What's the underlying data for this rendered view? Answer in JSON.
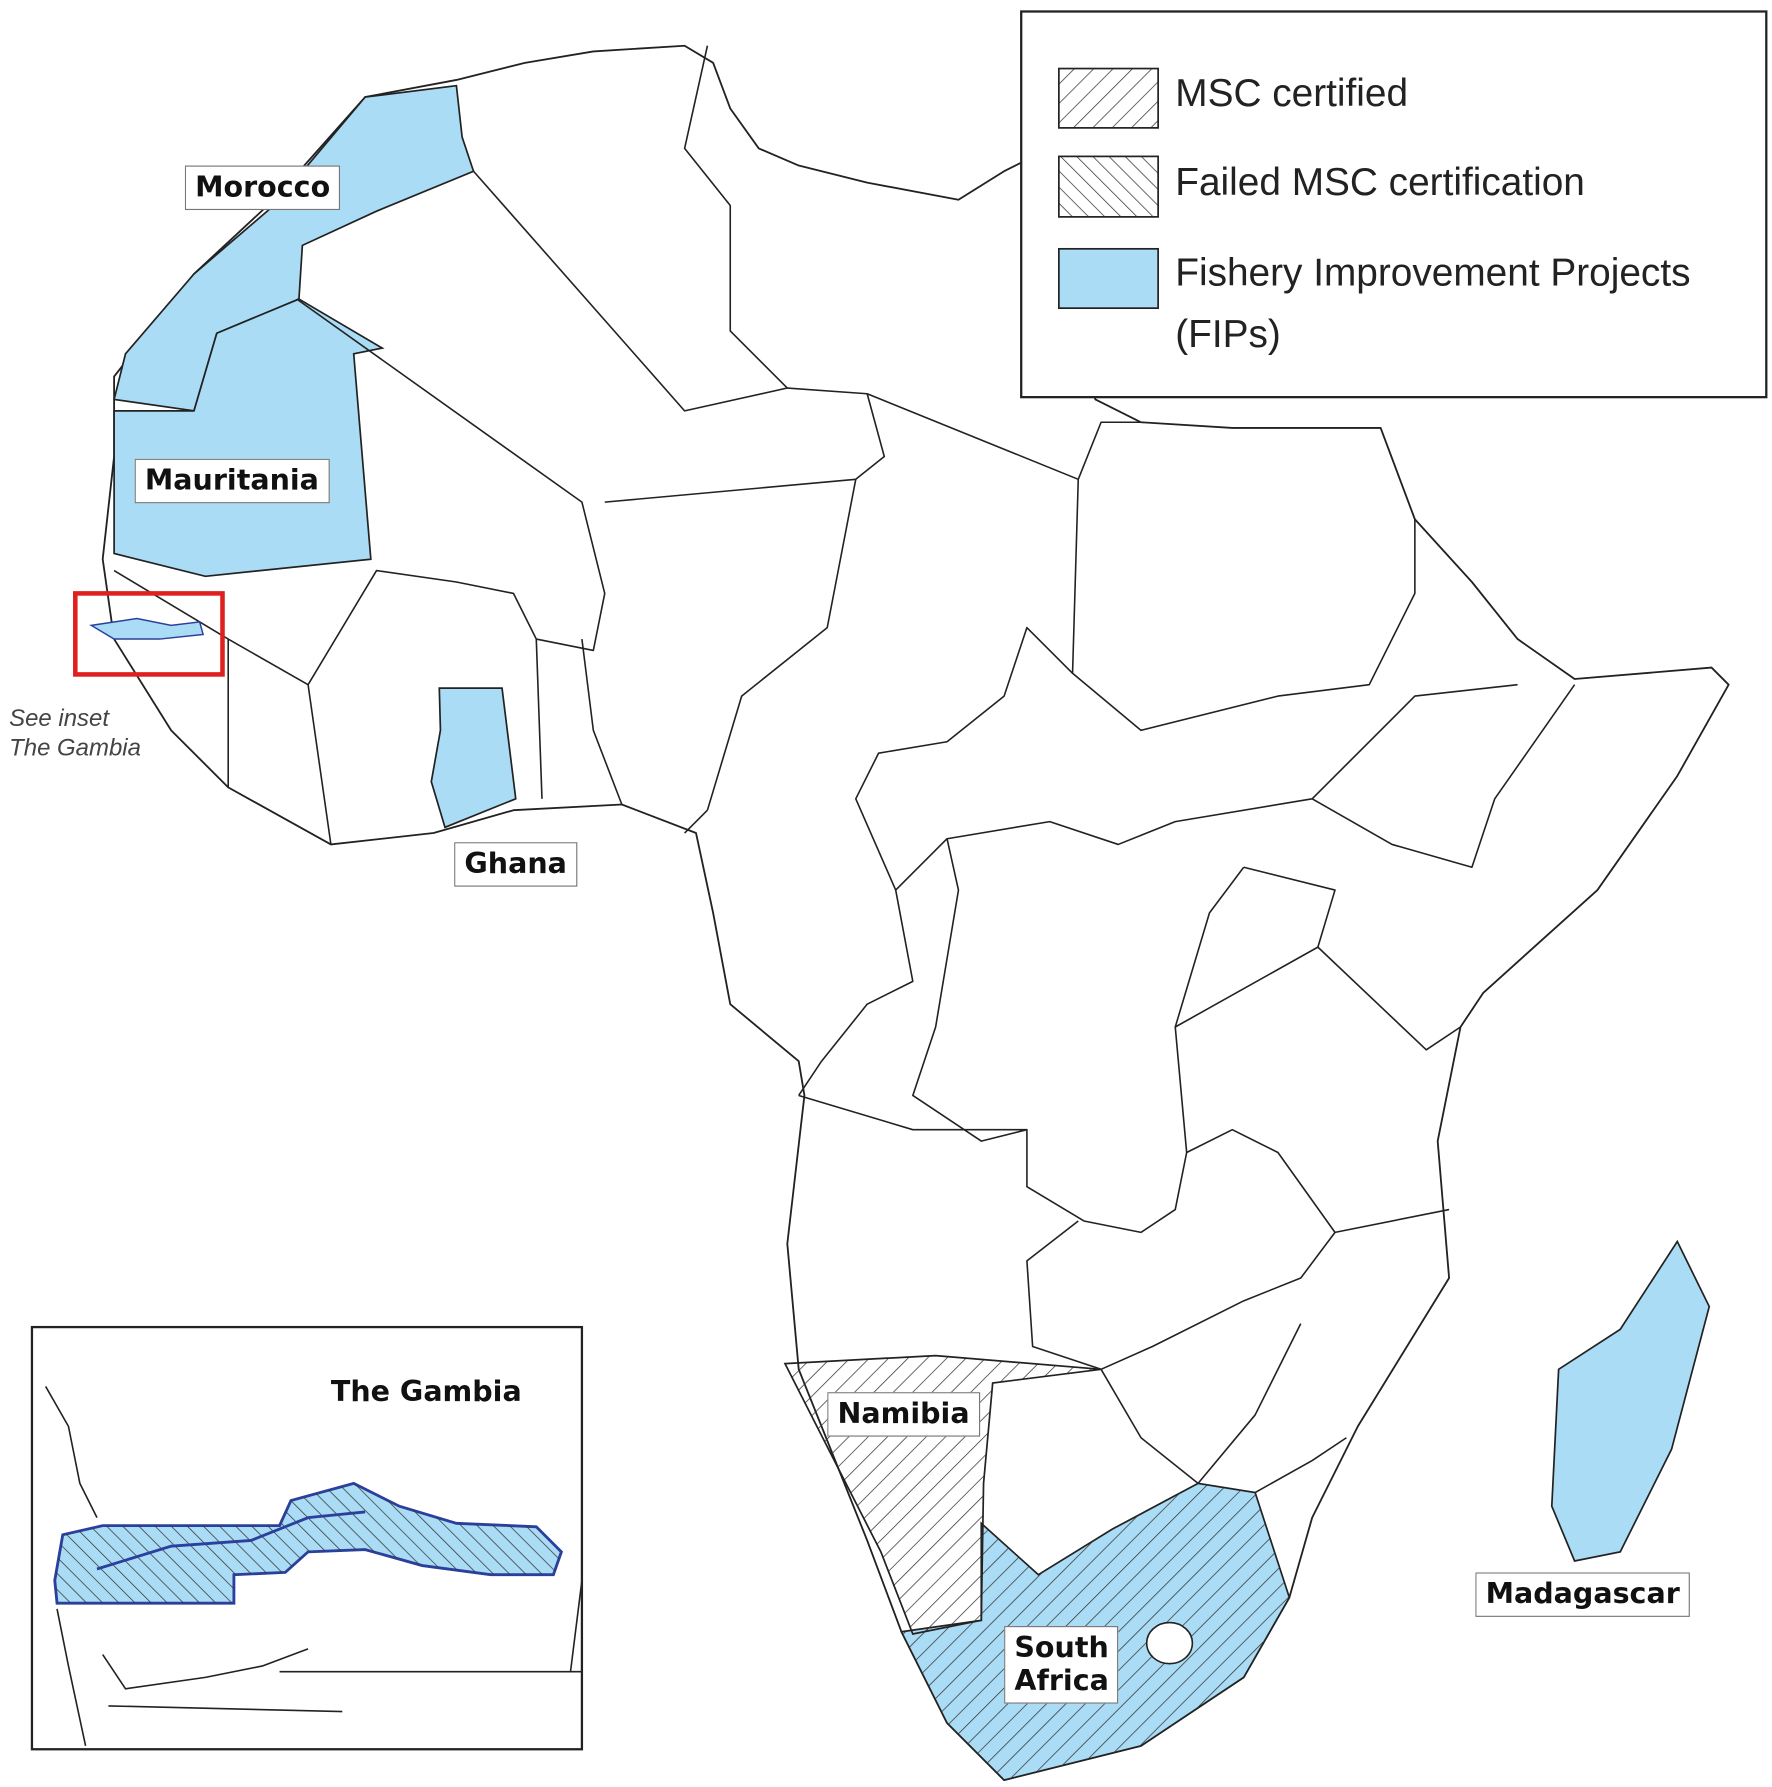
{
  "legend": {
    "items": [
      {
        "label": "MSC certified"
      },
      {
        "label": "Failed MSC certification"
      },
      {
        "label": "Fishery Improvement Projects (FIPs)"
      }
    ]
  },
  "labels": {
    "morocco": "Morocco",
    "mauritania": "Mauritania",
    "ghana": "Ghana",
    "namibia": "Namibia",
    "south_africa": "South Africa",
    "madagascar": "Madagascar"
  },
  "inset_note": [
    "See inset",
    "The Gambia"
  ],
  "inset": {
    "title": "The Gambia"
  }
}
